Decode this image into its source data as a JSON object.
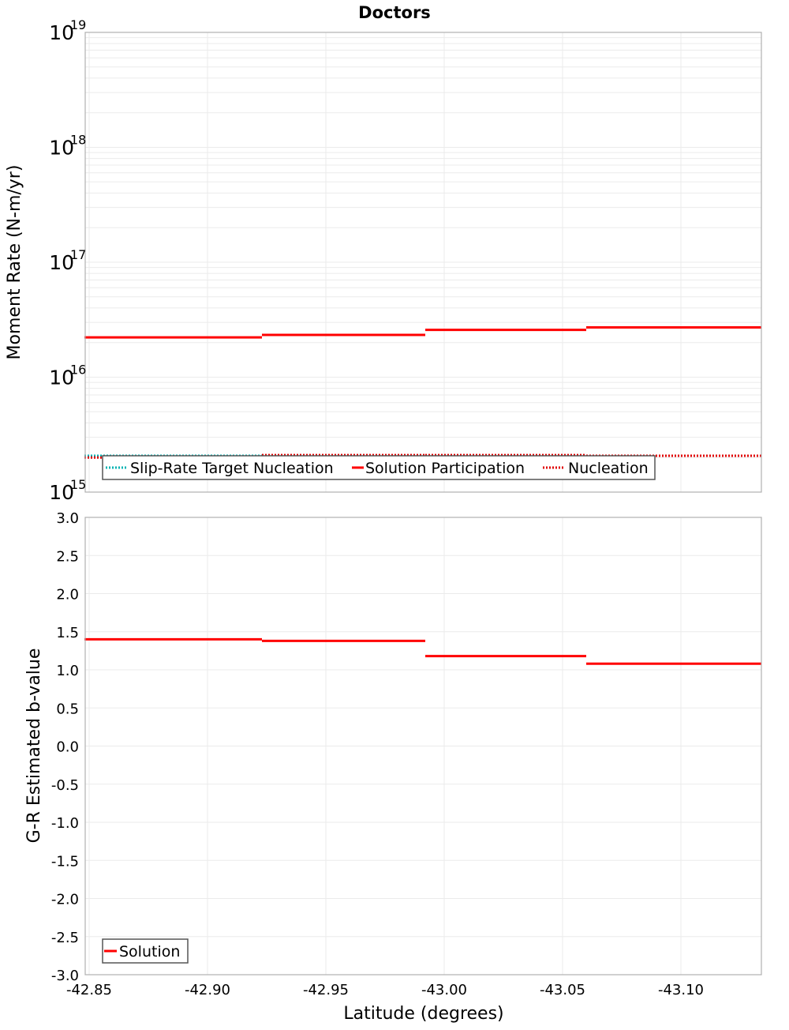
{
  "title": "Doctors",
  "colors": {
    "solution": "#ff0000",
    "target": "#00b3b3",
    "nucleation": "#e00000",
    "grid": "#ebebeb",
    "axis": "#b0b0b0"
  },
  "chart_data": [
    {
      "type": "line",
      "title": "Doctors",
      "xlabel": "Latitude (degrees)",
      "ylabel": "Moment Rate (N-m/yr)",
      "yscale": "log",
      "ylim": [
        1000000000000000.0,
        1e+19
      ],
      "xlim": [
        -42.848,
        -43.134
      ],
      "x_ticks": [],
      "y_ticks": [
        {
          "base": "10",
          "exp": "19",
          "value": 1e+19
        },
        {
          "base": "10",
          "exp": "18",
          "value": 1e+18
        },
        {
          "base": "10",
          "exp": "17",
          "value": 1e+17
        },
        {
          "base": "10",
          "exp": "16",
          "value": 1e+16
        },
        {
          "base": "10",
          "exp": "15",
          "value": 1000000000000000.0
        }
      ],
      "grid": true,
      "legend_position": "lower-left",
      "legend": [
        "Slip-Rate Target Nucleation",
        "Solution Participation",
        "Nucleation"
      ],
      "series": [
        {
          "name": "Slip-Rate Target Nucleation",
          "style": "dotted",
          "color": "#00b3b3",
          "segments": [
            {
              "x0": -42.848,
              "x1": -42.923,
              "y": 2070000000000000.0
            },
            {
              "x0": -42.923,
              "x1": -42.992,
              "y": 2070000000000000.0
            },
            {
              "x0": -42.992,
              "x1": -43.06,
              "y": 2070000000000000.0
            },
            {
              "x0": -43.06,
              "x1": -43.134,
              "y": 2070000000000000.0
            }
          ]
        },
        {
          "name": "Solution Participation",
          "style": "solid",
          "color": "#ff0000",
          "segments": [
            {
              "x0": -42.848,
              "x1": -42.923,
              "y": 2.22e+16
            },
            {
              "x0": -42.923,
              "x1": -42.992,
              "y": 2.33e+16
            },
            {
              "x0": -42.992,
              "x1": -43.06,
              "y": 2.58e+16
            },
            {
              "x0": -43.06,
              "x1": -43.134,
              "y": 2.71e+16
            }
          ]
        },
        {
          "name": "Nucleation",
          "style": "dotted",
          "color": "#e00000",
          "segments": [
            {
              "x0": -42.848,
              "x1": -42.923,
              "y": 2000000000000000.0
            },
            {
              "x0": -42.923,
              "x1": -42.992,
              "y": 2100000000000000.0
            },
            {
              "x0": -42.992,
              "x1": -43.06,
              "y": 2100000000000000.0
            },
            {
              "x0": -43.06,
              "x1": -43.134,
              "y": 2070000000000000.0
            }
          ]
        }
      ]
    },
    {
      "type": "line",
      "title": "",
      "xlabel": "Latitude (degrees)",
      "ylabel": "G-R Estimated b-value",
      "ylim": [
        -3.0,
        3.0
      ],
      "xlim": [
        -42.848,
        -43.134
      ],
      "x_ticks": [
        "-42.85",
        "-42.90",
        "-42.95",
        "-43.00",
        "-43.05",
        "-43.10"
      ],
      "y_ticks": [
        "3.0",
        "2.5",
        "2.0",
        "1.5",
        "1.0",
        "0.5",
        "0.0",
        "-0.5",
        "-1.0",
        "-1.5",
        "-2.0",
        "-2.5",
        "-3.0"
      ],
      "grid": true,
      "legend_position": "lower-left",
      "legend": [
        "Solution"
      ],
      "series": [
        {
          "name": "Solution",
          "style": "solid",
          "color": "#ff0000",
          "segments": [
            {
              "x0": -42.848,
              "x1": -42.923,
              "y": 1.4
            },
            {
              "x0": -42.923,
              "x1": -42.992,
              "y": 1.38
            },
            {
              "x0": -42.992,
              "x1": -43.06,
              "y": 1.18
            },
            {
              "x0": -43.06,
              "x1": -43.134,
              "y": 1.08
            }
          ]
        }
      ]
    }
  ]
}
